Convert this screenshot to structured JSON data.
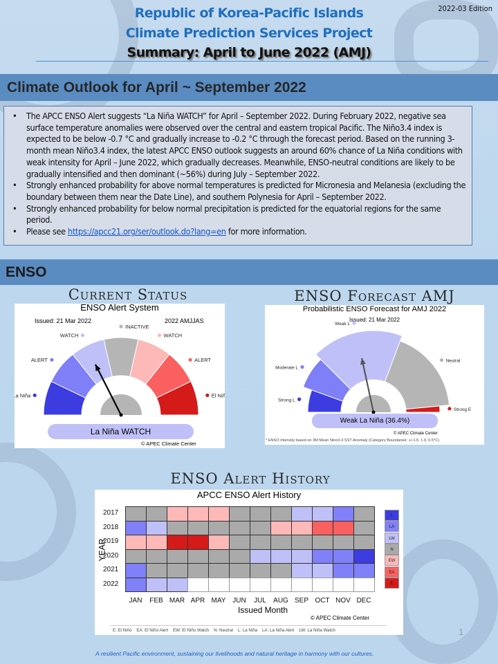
{
  "header": {
    "line1": "Republic of Korea-Pacific Islands",
    "line2": "Climate Prediction Services Project",
    "line3": "Summary: April to June 2022 (AMJ)",
    "edition": "2022-03 Edition"
  },
  "outlook": {
    "title": "Climate Outlook for April ~ September 2022",
    "bullets": [
      "The APCC ENSO Alert suggests “La Niña WATCH” for April – September 2022. During February 2022, negative sea surface temperature anomalies were observed over the central and eastern tropical Pacific. The Niño3.4 index is expected to be below -0.7 °C and gradually increase to -0.2 °C through the forecast period. Based on the running 3-month mean Niño3.4 index, the latest APCC ENSO outlook suggests an around 60% chance of La Niña conditions with weak intensity for April – June 2022, which gradually decreases. Meanwhile, ENSO-neutral conditions are likely to be gradually intensified and then dominant (~56%) during July – September 2022.",
      "Strongly enhanced probability for above normal temperatures is predicted for Micronesia and Melanesia (excluding the boundary between them near the Date Line), and southern Polynesia for April – September 2022.",
      "Strongly enhanced probability for below normal precipitation is predicted for the equatorial regions for the same period."
    ],
    "link_prefix": "Please see",
    "link": "https://apcc21.org/ser/outlook.do?lang=en",
    "link_suffix": " for more information."
  },
  "enso": {
    "title": "ENSO",
    "current": {
      "heading": "Current Status",
      "chart_title": "ENSO Alert System",
      "issued": "Issued: 21 Mar 2022",
      "period": "2022 AMJJAS",
      "status": "La Niña WATCH",
      "credit": "© APEC Climate Center",
      "segments": [
        {
          "label": "La Niña",
          "color": "#3c3ce0"
        },
        {
          "label": "ALERT",
          "color": "#7f7ff8"
        },
        {
          "label": "WATCH",
          "color": "#c0c0f8"
        },
        {
          "label": "INACTIVE",
          "color": "#b5b5b5"
        },
        {
          "label": "WATCH",
          "color": "#fdb8b8"
        },
        {
          "label": "ALERT",
          "color": "#fa6060"
        },
        {
          "label": "El Niño",
          "color": "#d51a1a"
        }
      ],
      "active_index": 2
    },
    "forecast": {
      "heading": "ENSO Forecast AMJ",
      "chart_title": "Probabilistic ENSO Forecast for AMJ 2022",
      "issued": "Issued: 21 Mar 2022",
      "status": "Weak La Niña (36.4%)",
      "credit": "© APEC Climate Center",
      "footnote": "* ENSO Intensity based on 3M Mean Nino3.4 SST Anomaly (Category Boundaries: +/-1.5, 1.0, 0.5°C)",
      "segments": [
        {
          "label": "Strong L",
          "prob": 11,
          "color": "#3c3ce0"
        },
        {
          "label": "Moderate L",
          "prob": 14,
          "color": "#7f7ff8"
        },
        {
          "label": "Weak L",
          "prob": 36.4,
          "color": "#c0c0f8"
        },
        {
          "label": "Neutral",
          "prob": 35.6,
          "color": "#b5b5b5"
        },
        {
          "label": "Strong E",
          "prob": 3,
          "color": "#d51a1a"
        }
      ]
    },
    "history": {
      "heading": "ENSO Alert History",
      "credit": "© APEC Climate Center",
      "key": "E: El Niño    EA: El Niño Alert    EW: El Niño Watch    N: Neutral    L: La Niña    LA: La Niña Alert    LW: La Niña Watch"
    }
  },
  "chart_data": {
    "type": "heatmap",
    "title": "APCC ENSO Alert History",
    "xlabel": "Issued Month",
    "ylabel": "YEAR",
    "x": [
      "JAN",
      "FEB",
      "MAR",
      "APR",
      "MAY",
      "JUN",
      "JUL",
      "AUG",
      "SEP",
      "OCT",
      "NOV",
      "DEC"
    ],
    "y": [
      "2017",
      "2018",
      "2019",
      "2020",
      "2021",
      "2022"
    ],
    "values": [
      [
        "N",
        "N",
        "EW",
        "EW",
        "EW",
        "N",
        "N",
        "N",
        "LW",
        "LW",
        "LA",
        "N"
      ],
      [
        "LA",
        "LW",
        "N",
        "N",
        "N",
        "N",
        "N",
        "EW",
        "EW",
        "EA",
        "EA",
        "N"
      ],
      [
        "EW",
        "EW",
        "E",
        "E",
        "EW",
        "N",
        "N",
        "N",
        "N",
        "N",
        "N",
        "N"
      ],
      [
        "N",
        "N",
        "N",
        "N",
        "N",
        "N",
        "LW",
        "LW",
        "LW",
        "LA",
        "LA",
        "L"
      ],
      [
        "LA",
        "N",
        "N",
        "N",
        "N",
        "N",
        "N",
        "N",
        "LW",
        "LW",
        "LA",
        "LA"
      ],
      [
        "LA",
        "LW",
        "LW",
        "",
        "",
        "",
        "",
        "",
        "",
        "",
        "",
        ""
      ]
    ],
    "legend": [
      "L",
      "LA",
      "LW",
      "N",
      "EW",
      "EA",
      "E"
    ],
    "colors": {
      "L": "#3c3ce0",
      "LA": "#8080f8",
      "LW": "#c0c0f8",
      "N": "#aaaaaa",
      "EW": "#fdb8b8",
      "EA": "#fa6060",
      "E": "#d51a1a",
      "": "#ffffff"
    }
  },
  "footer": {
    "motto": "A resilient Pacific environment, sustaining our livelihoods and natural heritage in harmony with our cultures.",
    "page": "1"
  }
}
